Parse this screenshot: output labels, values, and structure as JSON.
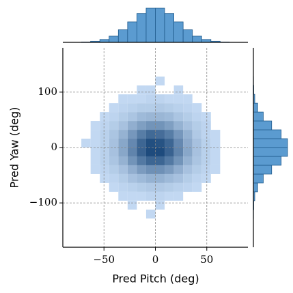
{
  "chart_data": {
    "type": "hist2d",
    "x_label": "Pred Pitch (deg)",
    "y_label": "Pred Yaw (deg)",
    "x_bins": [
      -72,
      -63,
      -54,
      -45,
      -36,
      -27,
      -18,
      -9,
      0,
      9,
      18,
      27,
      36,
      45,
      54,
      63,
      72
    ],
    "y_bins": [
      -128,
      -112,
      -96,
      -80,
      -64,
      -48,
      -32,
      -16,
      0,
      16,
      32,
      48,
      64,
      80,
      96,
      112,
      128
    ],
    "counts": [
      [
        0,
        0,
        0,
        0,
        0,
        0,
        0,
        1,
        0,
        0,
        0,
        0,
        0,
        0,
        0,
        0
      ],
      [
        0,
        0,
        0,
        0,
        0,
        1,
        0,
        0,
        1,
        0,
        0,
        0,
        0,
        0,
        0,
        0
      ],
      [
        0,
        0,
        0,
        0,
        1,
        1,
        1,
        2,
        2,
        1,
        1,
        0,
        0,
        0,
        0,
        0
      ],
      [
        0,
        0,
        0,
        1,
        2,
        3,
        4,
        5,
        5,
        4,
        3,
        2,
        1,
        0,
        0,
        0
      ],
      [
        0,
        0,
        1,
        2,
        4,
        7,
        9,
        11,
        11,
        9,
        7,
        4,
        2,
        1,
        0,
        0
      ],
      [
        0,
        1,
        2,
        4,
        7,
        12,
        17,
        20,
        20,
        17,
        12,
        7,
        4,
        2,
        1,
        0
      ],
      [
        0,
        1,
        3,
        6,
        11,
        19,
        26,
        31,
        31,
        26,
        19,
        11,
        6,
        3,
        1,
        0
      ],
      [
        0,
        1,
        3,
        7,
        14,
        23,
        32,
        38,
        38,
        32,
        23,
        14,
        7,
        3,
        1,
        0
      ],
      [
        1,
        1,
        3,
        7,
        14,
        22,
        31,
        37,
        36,
        31,
        22,
        13,
        7,
        3,
        1,
        0
      ],
      [
        0,
        1,
        3,
        6,
        11,
        18,
        25,
        30,
        29,
        25,
        18,
        11,
        5,
        2,
        1,
        0
      ],
      [
        0,
        1,
        2,
        4,
        7,
        12,
        16,
        19,
        19,
        16,
        11,
        7,
        4,
        2,
        0,
        0
      ],
      [
        0,
        0,
        1,
        2,
        4,
        6,
        9,
        10,
        10,
        9,
        6,
        4,
        2,
        1,
        0,
        0
      ],
      [
        0,
        0,
        0,
        1,
        2,
        3,
        4,
        4,
        5,
        4,
        3,
        2,
        1,
        0,
        0,
        0
      ],
      [
        0,
        0,
        0,
        0,
        1,
        1,
        1,
        2,
        2,
        1,
        1,
        1,
        0,
        0,
        0,
        0
      ],
      [
        0,
        0,
        0,
        0,
        0,
        0,
        1,
        1,
        0,
        0,
        1,
        0,
        0,
        0,
        0,
        0
      ],
      [
        0,
        0,
        0,
        0,
        0,
        0,
        0,
        0,
        1,
        0,
        0,
        0,
        0,
        0,
        0,
        0
      ]
    ],
    "marginal_x": [
      2,
      7,
      18,
      39,
      79,
      129,
      182,
      215,
      215,
      182,
      129,
      79,
      39,
      18,
      7,
      2
    ],
    "marginal_y": [
      1,
      3,
      11,
      34,
      79,
      146,
      222,
      273,
      273,
      222,
      146,
      79,
      34,
      11,
      3,
      1
    ],
    "color": "#5b9bd0",
    "edge_color": "#1f5a8c",
    "xlim": [
      -90,
      90
    ],
    "ylim": [
      -180,
      180
    ],
    "xticks": [
      {
        "value": -50,
        "label": "−50"
      },
      0,
      50
    ],
    "yticks": [
      {
        "value": -100,
        "label": "−100"
      },
      0,
      100
    ],
    "grid": true
  }
}
